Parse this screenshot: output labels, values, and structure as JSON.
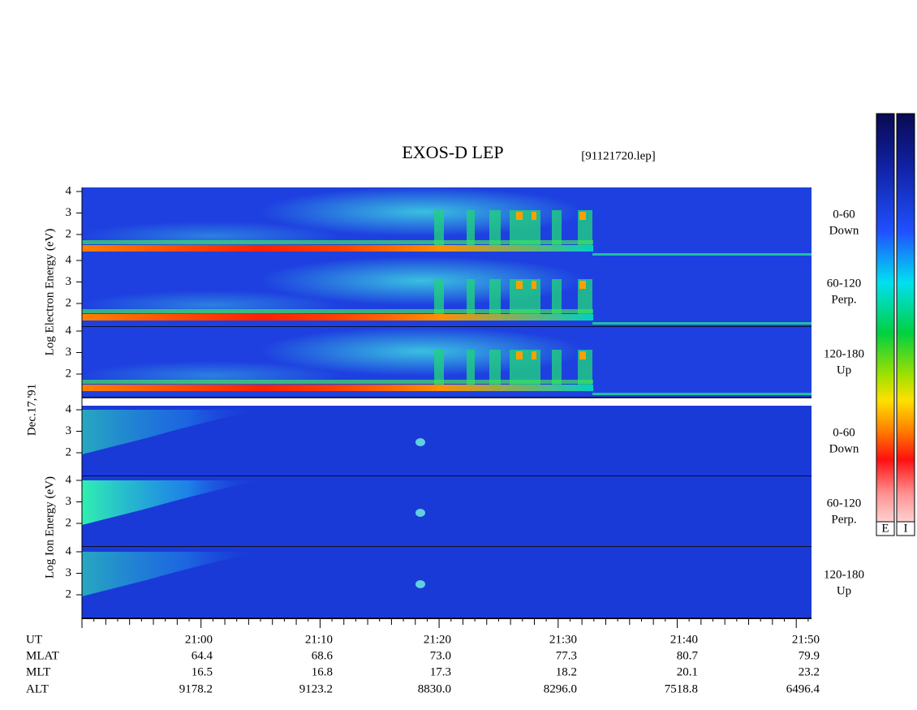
{
  "header": {
    "title": "EXOS-D LEP",
    "file": "[91121720.lep]"
  },
  "axis_labels": {
    "electron": "Log Electron Energy (eV)",
    "ion": "Log Ion Energy (eV)",
    "date": "Dec.17,'91"
  },
  "panels": [
    {
      "label": "0-60",
      "sublabel": "Down",
      "yticks": [
        2,
        3,
        4
      ]
    },
    {
      "label": "60-120",
      "sublabel": "Perp.",
      "yticks": [
        2,
        3,
        4
      ]
    },
    {
      "label": "120-180",
      "sublabel": "Up",
      "yticks": [
        2,
        3,
        4
      ]
    },
    {
      "label": "0-60",
      "sublabel": "Down",
      "yticks": [
        2,
        3,
        4
      ]
    },
    {
      "label": "60-120",
      "sublabel": "Perp.",
      "yticks": [
        2,
        3,
        4
      ]
    },
    {
      "label": "120-180",
      "sublabel": "Up",
      "yticks": [
        2,
        3,
        4
      ]
    }
  ],
  "colorbar_labels": [
    "E",
    "I"
  ],
  "table": {
    "rows": [
      [
        "UT",
        "21:00",
        "21:10",
        "21:20",
        "21:30",
        "21:40",
        "21:50"
      ],
      [
        "MLAT",
        "64.4",
        "68.6",
        "73.0",
        "77.3",
        "80.7",
        "79.9"
      ],
      [
        "MLT",
        "16.5",
        "16.8",
        "17.3",
        "18.2",
        "20.1",
        "23.2"
      ],
      [
        "ALT",
        "9178.2",
        "9123.2",
        "8830.0",
        "8296.0",
        "7518.8",
        "6496.4"
      ]
    ]
  }
}
